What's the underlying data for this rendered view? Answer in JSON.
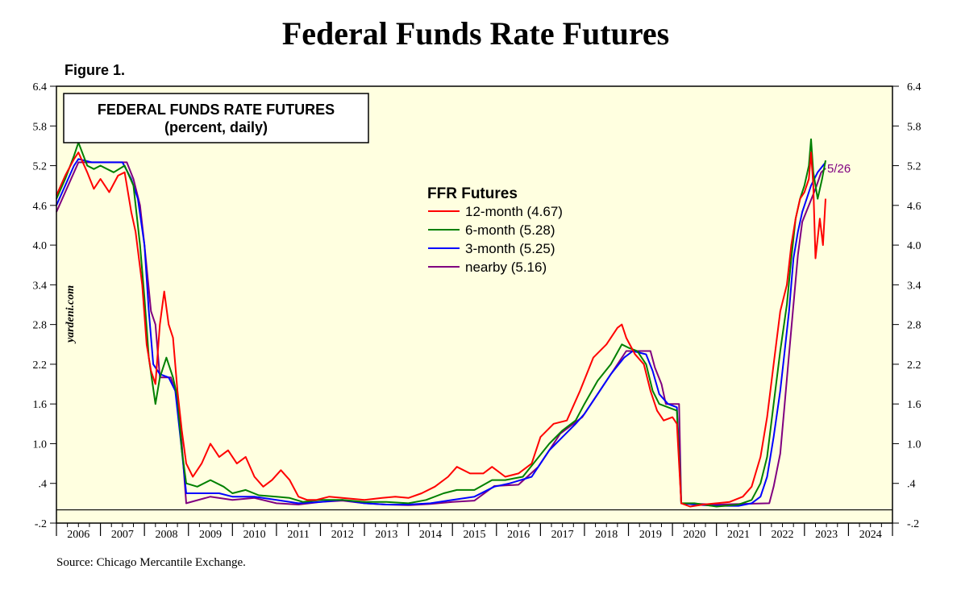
{
  "page": {
    "title": "Federal Funds Rate Futures",
    "figure_label": "Figure 1.",
    "source": "Source: Chicago Mercantile Exchange.",
    "watermark": "yardeni.com"
  },
  "chart_data": {
    "type": "line",
    "title": "FEDERAL FUNDS RATE FUTURES",
    "subtitle": "(percent, daily)",
    "legend_title": "FFR Futures",
    "legend_placement": "center-top",
    "end_label": "5/26",
    "background": "#ffffe0",
    "ylim": [
      -0.2,
      6.4
    ],
    "yticks": [
      -0.2,
      0.4,
      1.0,
      1.6,
      2.2,
      2.8,
      3.4,
      4.0,
      4.6,
      5.2,
      5.8,
      6.4
    ],
    "ytick_labels": [
      "-.2",
      ".4",
      "1.0",
      "1.6",
      "2.2",
      "2.8",
      "3.4",
      "4.0",
      "4.6",
      "5.2",
      "5.8",
      "6.4"
    ],
    "xlim": [
      2006,
      2025
    ],
    "x_tick_labels": [
      "2006",
      "2007",
      "2008",
      "2009",
      "2010",
      "2011",
      "2012",
      "2013",
      "2014",
      "2015",
      "2016",
      "2017",
      "2018",
      "2019",
      "2020",
      "2021",
      "2022",
      "2023",
      "2024"
    ],
    "zero_line": true,
    "series": [
      {
        "name": "12-month (4.67)",
        "color": "#ff0000",
        "points": [
          [
            2006.0,
            4.75
          ],
          [
            2006.2,
            5.05
          ],
          [
            2006.4,
            5.3
          ],
          [
            2006.5,
            5.4
          ],
          [
            2006.7,
            5.1
          ],
          [
            2006.85,
            4.85
          ],
          [
            2007.0,
            5.0
          ],
          [
            2007.2,
            4.8
          ],
          [
            2007.4,
            5.05
          ],
          [
            2007.55,
            5.1
          ],
          [
            2007.7,
            4.5
          ],
          [
            2007.8,
            4.2
          ],
          [
            2007.95,
            3.4
          ],
          [
            2008.05,
            2.5
          ],
          [
            2008.15,
            2.1
          ],
          [
            2008.25,
            1.9
          ],
          [
            2008.35,
            2.8
          ],
          [
            2008.45,
            3.3
          ],
          [
            2008.55,
            2.8
          ],
          [
            2008.65,
            2.6
          ],
          [
            2008.75,
            1.8
          ],
          [
            2008.85,
            1.2
          ],
          [
            2008.95,
            0.7
          ],
          [
            2009.1,
            0.5
          ],
          [
            2009.3,
            0.7
          ],
          [
            2009.5,
            1.0
          ],
          [
            2009.7,
            0.8
          ],
          [
            2009.9,
            0.9
          ],
          [
            2010.1,
            0.7
          ],
          [
            2010.3,
            0.8
          ],
          [
            2010.5,
            0.5
          ],
          [
            2010.7,
            0.35
          ],
          [
            2010.9,
            0.45
          ],
          [
            2011.1,
            0.6
          ],
          [
            2011.3,
            0.45
          ],
          [
            2011.5,
            0.2
          ],
          [
            2011.7,
            0.15
          ],
          [
            2011.9,
            0.15
          ],
          [
            2012.2,
            0.2
          ],
          [
            2012.5,
            0.18
          ],
          [
            2013.0,
            0.15
          ],
          [
            2013.4,
            0.18
          ],
          [
            2013.7,
            0.2
          ],
          [
            2014.0,
            0.18
          ],
          [
            2014.3,
            0.25
          ],
          [
            2014.6,
            0.35
          ],
          [
            2014.9,
            0.5
          ],
          [
            2015.1,
            0.65
          ],
          [
            2015.4,
            0.55
          ],
          [
            2015.7,
            0.55
          ],
          [
            2015.9,
            0.65
          ],
          [
            2016.2,
            0.5
          ],
          [
            2016.5,
            0.55
          ],
          [
            2016.8,
            0.7
          ],
          [
            2017.0,
            1.1
          ],
          [
            2017.3,
            1.3
          ],
          [
            2017.6,
            1.35
          ],
          [
            2017.9,
            1.8
          ],
          [
            2018.2,
            2.3
          ],
          [
            2018.5,
            2.5
          ],
          [
            2018.75,
            2.75
          ],
          [
            2018.85,
            2.8
          ],
          [
            2018.95,
            2.6
          ],
          [
            2019.15,
            2.35
          ],
          [
            2019.35,
            2.2
          ],
          [
            2019.5,
            1.8
          ],
          [
            2019.65,
            1.5
          ],
          [
            2019.8,
            1.35
          ],
          [
            2020.0,
            1.4
          ],
          [
            2020.1,
            1.3
          ],
          [
            2020.2,
            0.1
          ],
          [
            2020.4,
            0.05
          ],
          [
            2020.7,
            0.08
          ],
          [
            2021.0,
            0.1
          ],
          [
            2021.3,
            0.12
          ],
          [
            2021.6,
            0.2
          ],
          [
            2021.8,
            0.35
          ],
          [
            2022.0,
            0.8
          ],
          [
            2022.15,
            1.4
          ],
          [
            2022.3,
            2.2
          ],
          [
            2022.45,
            3.0
          ],
          [
            2022.6,
            3.4
          ],
          [
            2022.7,
            4.0
          ],
          [
            2022.8,
            4.4
          ],
          [
            2022.9,
            4.7
          ],
          [
            2023.0,
            4.8
          ],
          [
            2023.1,
            5.0
          ],
          [
            2023.15,
            5.4
          ],
          [
            2023.2,
            4.9
          ],
          [
            2023.25,
            3.8
          ],
          [
            2023.35,
            4.4
          ],
          [
            2023.42,
            4.0
          ],
          [
            2023.48,
            4.7
          ]
        ]
      },
      {
        "name": "6-month (5.28)",
        "color": "#008000",
        "points": [
          [
            2006.0,
            4.7
          ],
          [
            2006.2,
            5.0
          ],
          [
            2006.4,
            5.35
          ],
          [
            2006.5,
            5.55
          ],
          [
            2006.7,
            5.2
          ],
          [
            2006.85,
            5.15
          ],
          [
            2007.0,
            5.2
          ],
          [
            2007.3,
            5.1
          ],
          [
            2007.55,
            5.2
          ],
          [
            2007.75,
            4.9
          ],
          [
            2007.9,
            4.0
          ],
          [
            2008.0,
            3.2
          ],
          [
            2008.1,
            2.3
          ],
          [
            2008.25,
            1.6
          ],
          [
            2008.35,
            2.0
          ],
          [
            2008.5,
            2.3
          ],
          [
            2008.65,
            2.0
          ],
          [
            2008.75,
            1.7
          ],
          [
            2008.85,
            0.9
          ],
          [
            2008.95,
            0.4
          ],
          [
            2009.2,
            0.35
          ],
          [
            2009.5,
            0.45
          ],
          [
            2009.8,
            0.35
          ],
          [
            2010.0,
            0.25
          ],
          [
            2010.3,
            0.3
          ],
          [
            2010.6,
            0.22
          ],
          [
            2011.0,
            0.2
          ],
          [
            2011.3,
            0.18
          ],
          [
            2011.6,
            0.12
          ],
          [
            2012.0,
            0.15
          ],
          [
            2012.5,
            0.15
          ],
          [
            2013.0,
            0.12
          ],
          [
            2013.5,
            0.12
          ],
          [
            2014.0,
            0.1
          ],
          [
            2014.4,
            0.15
          ],
          [
            2014.8,
            0.25
          ],
          [
            2015.1,
            0.3
          ],
          [
            2015.5,
            0.3
          ],
          [
            2015.9,
            0.45
          ],
          [
            2016.2,
            0.45
          ],
          [
            2016.6,
            0.5
          ],
          [
            2016.9,
            0.75
          ],
          [
            2017.2,
            1.0
          ],
          [
            2017.5,
            1.2
          ],
          [
            2017.8,
            1.35
          ],
          [
            2018.0,
            1.6
          ],
          [
            2018.3,
            1.95
          ],
          [
            2018.6,
            2.2
          ],
          [
            2018.85,
            2.5
          ],
          [
            2019.0,
            2.45
          ],
          [
            2019.2,
            2.4
          ],
          [
            2019.4,
            2.2
          ],
          [
            2019.55,
            1.8
          ],
          [
            2019.7,
            1.6
          ],
          [
            2019.9,
            1.55
          ],
          [
            2020.1,
            1.5
          ],
          [
            2020.2,
            0.1
          ],
          [
            2020.5,
            0.1
          ],
          [
            2021.0,
            0.05
          ],
          [
            2021.5,
            0.08
          ],
          [
            2021.8,
            0.15
          ],
          [
            2022.0,
            0.4
          ],
          [
            2022.15,
            0.8
          ],
          [
            2022.3,
            1.6
          ],
          [
            2022.45,
            2.4
          ],
          [
            2022.6,
            3.1
          ],
          [
            2022.7,
            3.8
          ],
          [
            2022.8,
            4.4
          ],
          [
            2022.9,
            4.7
          ],
          [
            2023.0,
            4.9
          ],
          [
            2023.1,
            5.2
          ],
          [
            2023.15,
            5.6
          ],
          [
            2023.2,
            5.1
          ],
          [
            2023.3,
            4.7
          ],
          [
            2023.4,
            5.0
          ],
          [
            2023.48,
            5.28
          ]
        ]
      },
      {
        "name": "3-month (5.25)",
        "color": "#0000ff",
        "points": [
          [
            2006.0,
            4.6
          ],
          [
            2006.2,
            4.9
          ],
          [
            2006.4,
            5.2
          ],
          [
            2006.5,
            5.3
          ],
          [
            2006.8,
            5.25
          ],
          [
            2007.0,
            5.25
          ],
          [
            2007.5,
            5.25
          ],
          [
            2007.7,
            5.0
          ],
          [
            2007.85,
            4.7
          ],
          [
            2008.0,
            4.0
          ],
          [
            2008.1,
            3.0
          ],
          [
            2008.2,
            2.2
          ],
          [
            2008.35,
            2.05
          ],
          [
            2008.55,
            2.0
          ],
          [
            2008.7,
            1.8
          ],
          [
            2008.85,
            0.9
          ],
          [
            2008.95,
            0.25
          ],
          [
            2009.3,
            0.25
          ],
          [
            2009.7,
            0.25
          ],
          [
            2010.0,
            0.2
          ],
          [
            2010.5,
            0.2
          ],
          [
            2011.0,
            0.15
          ],
          [
            2011.5,
            0.1
          ],
          [
            2012.0,
            0.12
          ],
          [
            2012.5,
            0.15
          ],
          [
            2013.0,
            0.1
          ],
          [
            2013.5,
            0.08
          ],
          [
            2014.0,
            0.08
          ],
          [
            2014.5,
            0.1
          ],
          [
            2015.0,
            0.15
          ],
          [
            2015.5,
            0.2
          ],
          [
            2015.95,
            0.35
          ],
          [
            2016.3,
            0.4
          ],
          [
            2016.8,
            0.5
          ],
          [
            2017.0,
            0.7
          ],
          [
            2017.2,
            0.9
          ],
          [
            2017.5,
            1.1
          ],
          [
            2017.8,
            1.3
          ],
          [
            2018.0,
            1.45
          ],
          [
            2018.3,
            1.75
          ],
          [
            2018.6,
            2.05
          ],
          [
            2018.9,
            2.3
          ],
          [
            2019.1,
            2.4
          ],
          [
            2019.4,
            2.35
          ],
          [
            2019.55,
            2.1
          ],
          [
            2019.7,
            1.75
          ],
          [
            2019.9,
            1.6
          ],
          [
            2020.1,
            1.55
          ],
          [
            2020.2,
            0.1
          ],
          [
            2020.5,
            0.08
          ],
          [
            2021.0,
            0.06
          ],
          [
            2021.5,
            0.06
          ],
          [
            2021.8,
            0.1
          ],
          [
            2022.0,
            0.2
          ],
          [
            2022.15,
            0.5
          ],
          [
            2022.3,
            1.1
          ],
          [
            2022.45,
            1.8
          ],
          [
            2022.55,
            2.4
          ],
          [
            2022.65,
            3.0
          ],
          [
            2022.75,
            3.8
          ],
          [
            2022.85,
            4.2
          ],
          [
            2022.95,
            4.5
          ],
          [
            2023.05,
            4.7
          ],
          [
            2023.15,
            4.9
          ],
          [
            2023.3,
            5.1
          ],
          [
            2023.48,
            5.25
          ]
        ]
      },
      {
        "name": "nearby (5.16)",
        "color": "#800080",
        "points": [
          [
            2006.0,
            4.5
          ],
          [
            2006.2,
            4.8
          ],
          [
            2006.4,
            5.1
          ],
          [
            2006.5,
            5.25
          ],
          [
            2007.0,
            5.25
          ],
          [
            2007.6,
            5.25
          ],
          [
            2007.75,
            5.0
          ],
          [
            2007.9,
            4.6
          ],
          [
            2008.0,
            4.0
          ],
          [
            2008.15,
            3.0
          ],
          [
            2008.25,
            2.8
          ],
          [
            2008.35,
            2.0
          ],
          [
            2008.6,
            2.0
          ],
          [
            2008.75,
            1.7
          ],
          [
            2008.85,
            1.0
          ],
          [
            2008.95,
            0.1
          ],
          [
            2009.5,
            0.2
          ],
          [
            2010.0,
            0.15
          ],
          [
            2010.5,
            0.18
          ],
          [
            2011.0,
            0.1
          ],
          [
            2011.5,
            0.08
          ],
          [
            2012.0,
            0.12
          ],
          [
            2012.5,
            0.14
          ],
          [
            2013.0,
            0.1
          ],
          [
            2013.5,
            0.08
          ],
          [
            2014.0,
            0.07
          ],
          [
            2014.5,
            0.09
          ],
          [
            2015.0,
            0.12
          ],
          [
            2015.5,
            0.14
          ],
          [
            2015.95,
            0.36
          ],
          [
            2016.5,
            0.38
          ],
          [
            2016.95,
            0.65
          ],
          [
            2017.2,
            0.9
          ],
          [
            2017.45,
            1.15
          ],
          [
            2017.95,
            1.4
          ],
          [
            2018.2,
            1.65
          ],
          [
            2018.45,
            1.9
          ],
          [
            2018.7,
            2.15
          ],
          [
            2018.95,
            2.4
          ],
          [
            2019.5,
            2.4
          ],
          [
            2019.6,
            2.15
          ],
          [
            2019.75,
            1.9
          ],
          [
            2019.85,
            1.6
          ],
          [
            2020.15,
            1.6
          ],
          [
            2020.2,
            0.1
          ],
          [
            2021.0,
            0.08
          ],
          [
            2022.2,
            0.1
          ],
          [
            2022.3,
            0.35
          ],
          [
            2022.45,
            0.85
          ],
          [
            2022.55,
            1.6
          ],
          [
            2022.65,
            2.35
          ],
          [
            2022.75,
            3.1
          ],
          [
            2022.85,
            3.85
          ],
          [
            2022.95,
            4.35
          ],
          [
            2023.1,
            4.6
          ],
          [
            2023.25,
            4.85
          ],
          [
            2023.38,
            5.1
          ],
          [
            2023.48,
            5.16
          ]
        ]
      }
    ]
  }
}
